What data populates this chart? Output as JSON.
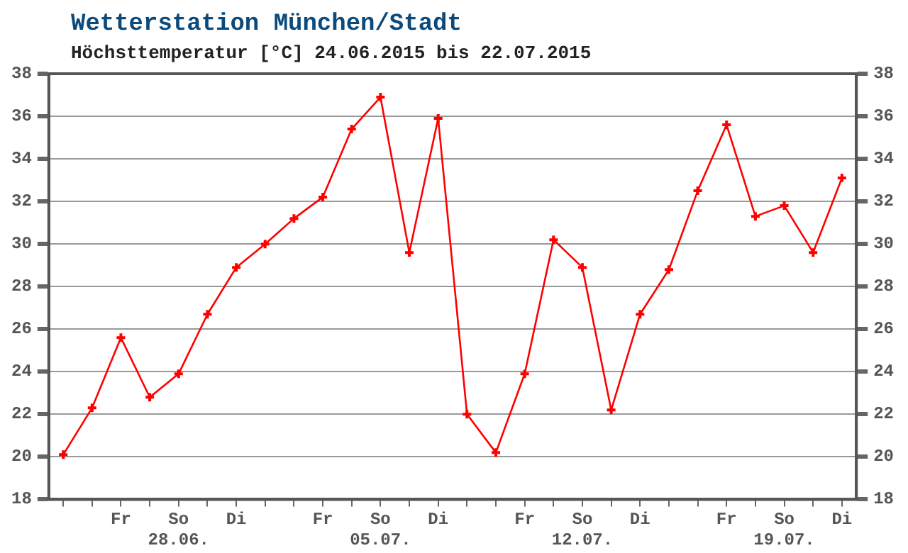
{
  "chart_data": {
    "type": "line",
    "title": "Wetterstation München/Stadt",
    "subtitle": "Höchsttemperatur [°C] 24.06.2015 bis 22.07.2015",
    "categories": [
      null,
      null,
      "Fr",
      null,
      "So\n28.06.",
      null,
      "Di",
      null,
      null,
      "Fr",
      null,
      "So\n05.07.",
      null,
      "Di",
      null,
      null,
      "Fr",
      null,
      "So\n12.07.",
      null,
      "Di",
      null,
      null,
      "Fr",
      null,
      "So\n19.07.",
      null,
      "Di"
    ],
    "series": [
      {
        "color": "#ff0000",
        "values": [
          20.1,
          22.3,
          25.6,
          22.8,
          23.9,
          26.7,
          28.9,
          30.0,
          31.2,
          32.2,
          35.4,
          36.9,
          29.6,
          35.9,
          22.0,
          20.2,
          23.9,
          30.2,
          28.9,
          22.2,
          26.7,
          28.8,
          32.5,
          35.6,
          31.3,
          31.8,
          29.6,
          33.1
        ]
      }
    ],
    "ylim": [
      18,
      38
    ],
    "yticks": [
      18,
      20,
      22,
      24,
      26,
      28,
      30,
      32,
      34,
      36,
      38
    ],
    "y2lim": [
      18,
      38
    ],
    "y2ticks": [
      18,
      20,
      22,
      24,
      26,
      28,
      30,
      32,
      34,
      36,
      38
    ],
    "grid": "y",
    "legend": false,
    "marker": "cross",
    "line_style": "solid"
  }
}
